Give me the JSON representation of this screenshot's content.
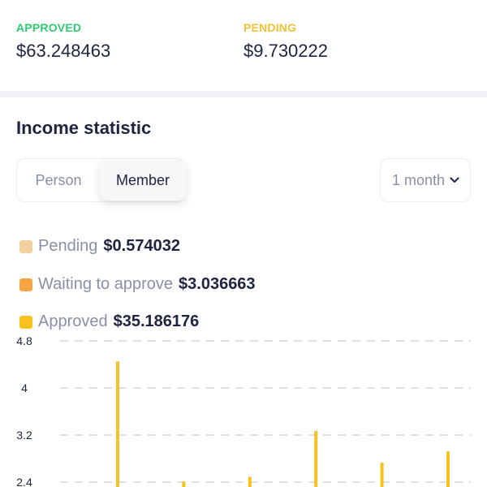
{
  "summary": {
    "approved": {
      "label": "APPROVED",
      "value": "$63.248463",
      "color": "#2ecc71"
    },
    "pending": {
      "label": "PENDING",
      "value": "$9.730222",
      "color": "#f1c232"
    }
  },
  "income": {
    "title": "Income statistic",
    "tabs": [
      {
        "label": "Person",
        "active": false
      },
      {
        "label": "Member",
        "active": true
      }
    ],
    "period": {
      "selected": "1 month",
      "icon": "chevron-down-icon"
    },
    "legend": [
      {
        "label": "Pending",
        "value": "$0.574032",
        "color": "#f6cf9f"
      },
      {
        "label": "Waiting to approve",
        "value": "$3.036663",
        "color": "#f5a445"
      },
      {
        "label": "Approved",
        "value": "$35.186176",
        "color": "#f8c21f"
      }
    ]
  },
  "chart_data": {
    "type": "bar",
    "title": "",
    "xlabel": "",
    "ylabel": "",
    "y_ticks": [
      "4.8",
      "4",
      "3.2",
      "2.4"
    ],
    "ylim": [
      2.4,
      4.8
    ],
    "grid": true,
    "series": [
      {
        "name": "Approved",
        "color": "#f8c21f",
        "x": [
          1,
          2,
          3,
          4,
          5,
          6
        ],
        "values": [
          4.45,
          2.41,
          2.49,
          3.27,
          2.73,
          2.92
        ]
      }
    ],
    "x_range": [
      0.5,
      6.5
    ]
  }
}
